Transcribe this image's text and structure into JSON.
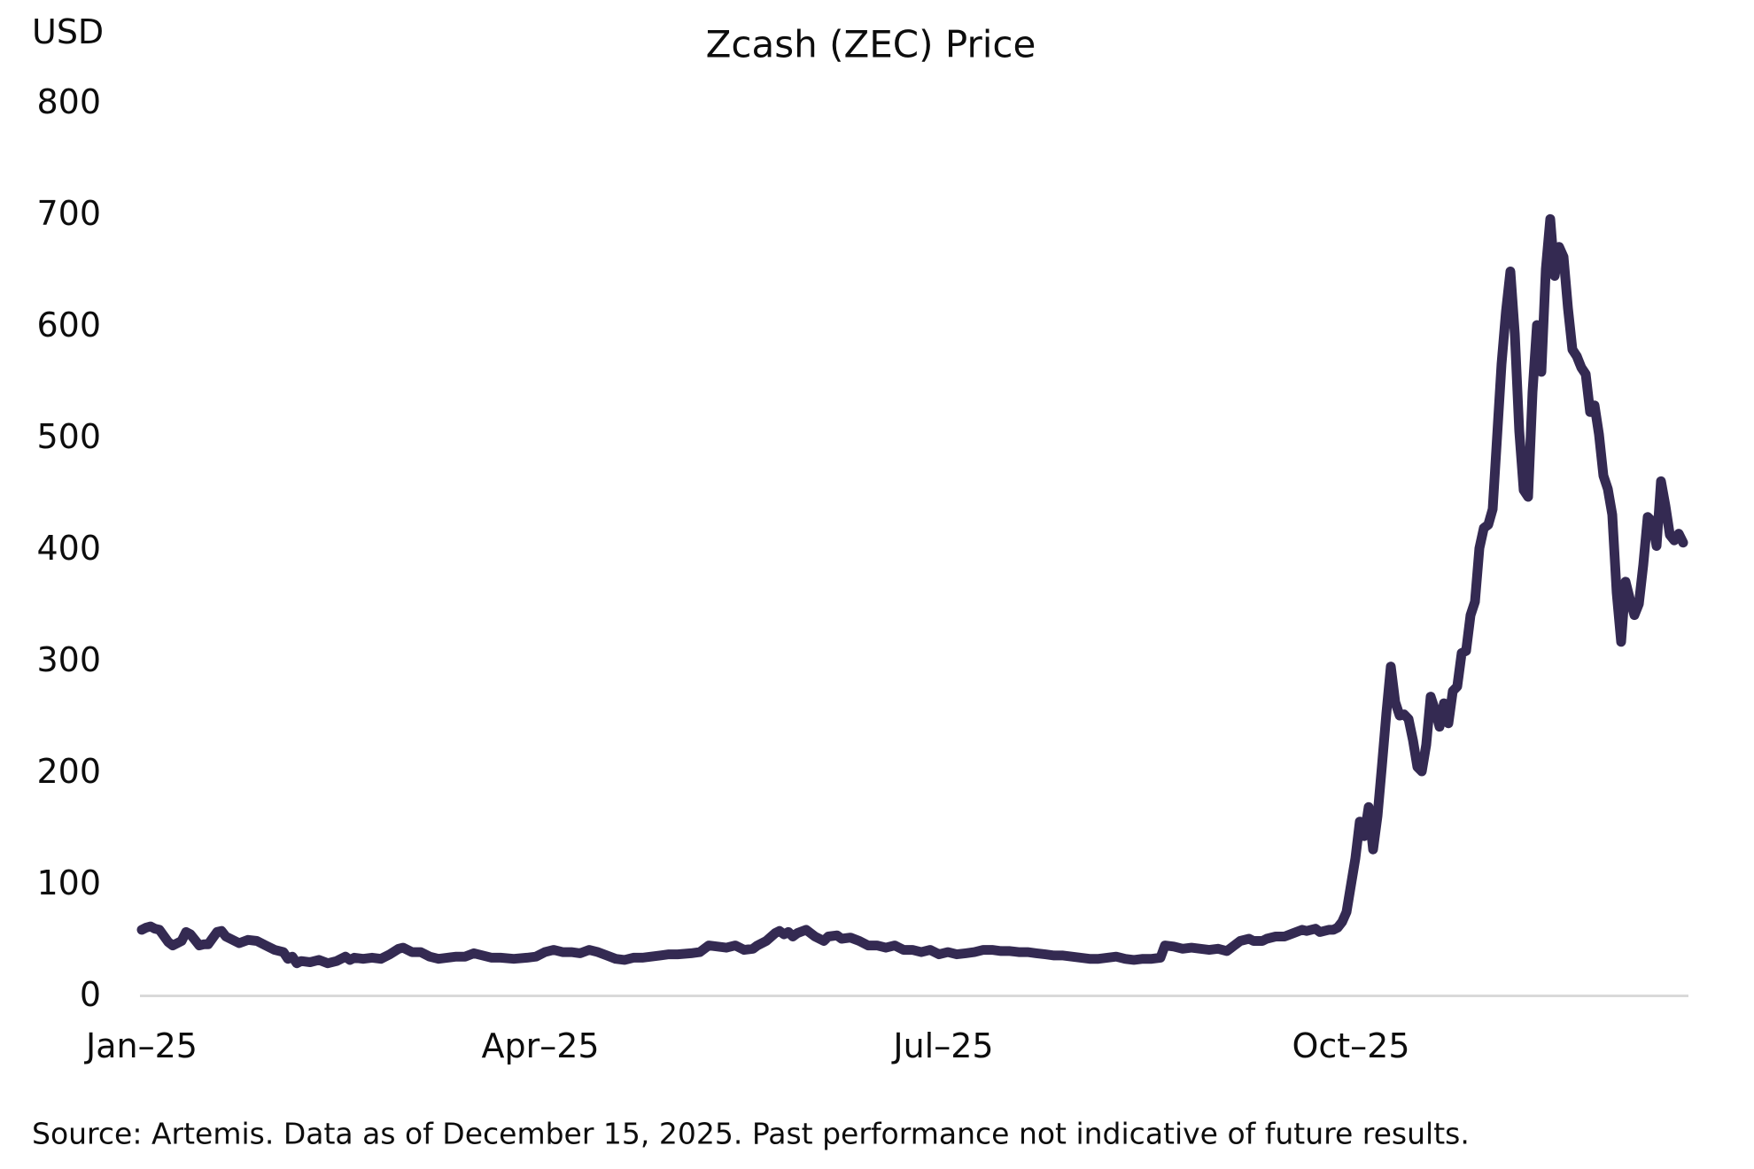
{
  "title": "Zcash (ZEC) Price",
  "y_axis_unit": "USD",
  "source_note": "Source: Artemis. Data as of December 15, 2025. Past performance not indicative of future results.",
  "colors": {
    "line": "#342a52",
    "axis": "#d9d9d9",
    "text": "#0d0d0d",
    "background": "#ffffff"
  },
  "chart_data": {
    "type": "line",
    "title": "Zcash (ZEC) Price",
    "ylabel": "USD",
    "xlabel": "",
    "series_name": "Zcash (ZEC) price in USD",
    "x_unit": "days since 2025-01-01",
    "xlim": [
      0,
      349
    ],
    "ylim": [
      0,
      800
    ],
    "grid": false,
    "legend": "none",
    "x_ticks": [
      {
        "label": "Jan–25",
        "day": 0
      },
      {
        "label": "Apr–25",
        "day": 90
      },
      {
        "label": "Jul–25",
        "day": 181
      },
      {
        "label": "Oct–25",
        "day": 273
      }
    ],
    "y_ticks": [
      0,
      100,
      200,
      300,
      400,
      500,
      600,
      700,
      800
    ],
    "points": [
      [
        0,
        58
      ],
      [
        1,
        60
      ],
      [
        2,
        61
      ],
      [
        3,
        59
      ],
      [
        4,
        58
      ],
      [
        6,
        47
      ],
      [
        7,
        44
      ],
      [
        9,
        48
      ],
      [
        10,
        56
      ],
      [
        11,
        54
      ],
      [
        13,
        44
      ],
      [
        14,
        45
      ],
      [
        15,
        45
      ],
      [
        17,
        56
      ],
      [
        18,
        57
      ],
      [
        19,
        52
      ],
      [
        20,
        50
      ],
      [
        22,
        46
      ],
      [
        24,
        49
      ],
      [
        26,
        48
      ],
      [
        28,
        44
      ],
      [
        30,
        40
      ],
      [
        32,
        38
      ],
      [
        33,
        32
      ],
      [
        34,
        34
      ],
      [
        35,
        28
      ],
      [
        36,
        30
      ],
      [
        38,
        29
      ],
      [
        40,
        31
      ],
      [
        42,
        28
      ],
      [
        44,
        30
      ],
      [
        46,
        34
      ],
      [
        47,
        31
      ],
      [
        48,
        33
      ],
      [
        50,
        32
      ],
      [
        52,
        33
      ],
      [
        54,
        32
      ],
      [
        56,
        36
      ],
      [
        58,
        41
      ],
      [
        59,
        42
      ],
      [
        61,
        38
      ],
      [
        63,
        38
      ],
      [
        65,
        34
      ],
      [
        67,
        32
      ],
      [
        69,
        33
      ],
      [
        71,
        34
      ],
      [
        73,
        34
      ],
      [
        75,
        37
      ],
      [
        77,
        35
      ],
      [
        79,
        33
      ],
      [
        81,
        33
      ],
      [
        84,
        32
      ],
      [
        87,
        33
      ],
      [
        89,
        34
      ],
      [
        91,
        38
      ],
      [
        93,
        40
      ],
      [
        95,
        38
      ],
      [
        97,
        38
      ],
      [
        99,
        37
      ],
      [
        101,
        40
      ],
      [
        103,
        38
      ],
      [
        105,
        35
      ],
      [
        107,
        32
      ],
      [
        109,
        31
      ],
      [
        111,
        33
      ],
      [
        113,
        33
      ],
      [
        115,
        34
      ],
      [
        117,
        35
      ],
      [
        119,
        36
      ],
      [
        121,
        36
      ],
      [
        124,
        37
      ],
      [
        126,
        38
      ],
      [
        128,
        44
      ],
      [
        130,
        43
      ],
      [
        132,
        42
      ],
      [
        134,
        44
      ],
      [
        136,
        40
      ],
      [
        138,
        41
      ],
      [
        139,
        44
      ],
      [
        141,
        48
      ],
      [
        143,
        55
      ],
      [
        144,
        57
      ],
      [
        145,
        54
      ],
      [
        146,
        56
      ],
      [
        147,
        52
      ],
      [
        148,
        55
      ],
      [
        150,
        58
      ],
      [
        152,
        52
      ],
      [
        154,
        48
      ],
      [
        155,
        52
      ],
      [
        157,
        53
      ],
      [
        158,
        50
      ],
      [
        160,
        51
      ],
      [
        162,
        48
      ],
      [
        164,
        44
      ],
      [
        166,
        44
      ],
      [
        168,
        42
      ],
      [
        170,
        44
      ],
      [
        172,
        40
      ],
      [
        174,
        40
      ],
      [
        176,
        38
      ],
      [
        178,
        40
      ],
      [
        180,
        36
      ],
      [
        182,
        38
      ],
      [
        184,
        36
      ],
      [
        186,
        37
      ],
      [
        188,
        38
      ],
      [
        190,
        40
      ],
      [
        192,
        40
      ],
      [
        194,
        39
      ],
      [
        196,
        39
      ],
      [
        198,
        38
      ],
      [
        200,
        38
      ],
      [
        202,
        37
      ],
      [
        204,
        36
      ],
      [
        206,
        35
      ],
      [
        208,
        35
      ],
      [
        210,
        34
      ],
      [
        212,
        33
      ],
      [
        214,
        32
      ],
      [
        216,
        32
      ],
      [
        218,
        33
      ],
      [
        220,
        34
      ],
      [
        222,
        32
      ],
      [
        224,
        31
      ],
      [
        226,
        32
      ],
      [
        228,
        32
      ],
      [
        230,
        33
      ],
      [
        231,
        44
      ],
      [
        233,
        43
      ],
      [
        235,
        41
      ],
      [
        237,
        42
      ],
      [
        239,
        41
      ],
      [
        241,
        40
      ],
      [
        243,
        41
      ],
      [
        245,
        39
      ],
      [
        246,
        42
      ],
      [
        248,
        48
      ],
      [
        250,
        50
      ],
      [
        251,
        48
      ],
      [
        253,
        48
      ],
      [
        254,
        50
      ],
      [
        256,
        52
      ],
      [
        258,
        52
      ],
      [
        260,
        55
      ],
      [
        262,
        58
      ],
      [
        263,
        57
      ],
      [
        265,
        59
      ],
      [
        266,
        56
      ],
      [
        268,
        58
      ],
      [
        269,
        58
      ],
      [
        270,
        60
      ],
      [
        271,
        65
      ],
      [
        272,
        74
      ],
      [
        273,
        98
      ],
      [
        274,
        122
      ],
      [
        275,
        155
      ],
      [
        276,
        142
      ],
      [
        277,
        168
      ],
      [
        278,
        130
      ],
      [
        279,
        160
      ],
      [
        280,
        205
      ],
      [
        281,
        252
      ],
      [
        282,
        294
      ],
      [
        283,
        262
      ],
      [
        284,
        250
      ],
      [
        285,
        251
      ],
      [
        286,
        247
      ],
      [
        287,
        228
      ],
      [
        288,
        204
      ],
      [
        289,
        200
      ],
      [
        290,
        224
      ],
      [
        291,
        267
      ],
      [
        292,
        255
      ],
      [
        293,
        240
      ],
      [
        294,
        261
      ],
      [
        295,
        243
      ],
      [
        296,
        272
      ],
      [
        297,
        276
      ],
      [
        298,
        306
      ],
      [
        299,
        308
      ],
      [
        300,
        340
      ],
      [
        301,
        352
      ],
      [
        302,
        400
      ],
      [
        303,
        418
      ],
      [
        304,
        421
      ],
      [
        305,
        435
      ],
      [
        306,
        500
      ],
      [
        307,
        565
      ],
      [
        308,
        612
      ],
      [
        309,
        648
      ],
      [
        310,
        592
      ],
      [
        311,
        505
      ],
      [
        312,
        452
      ],
      [
        313,
        446
      ],
      [
        314,
        540
      ],
      [
        315,
        600
      ],
      [
        316,
        558
      ],
      [
        317,
        650
      ],
      [
        318,
        695
      ],
      [
        319,
        644
      ],
      [
        320,
        670
      ],
      [
        321,
        661
      ],
      [
        322,
        615
      ],
      [
        323,
        578
      ],
      [
        324,
        572
      ],
      [
        325,
        562
      ],
      [
        326,
        556
      ],
      [
        327,
        522
      ],
      [
        328,
        528
      ],
      [
        329,
        502
      ],
      [
        330,
        465
      ],
      [
        331,
        453
      ],
      [
        332,
        430
      ],
      [
        333,
        360
      ],
      [
        334,
        316
      ],
      [
        335,
        370
      ],
      [
        336,
        354
      ],
      [
        337,
        340
      ],
      [
        338,
        350
      ],
      [
        339,
        385
      ],
      [
        340,
        428
      ],
      [
        341,
        424
      ],
      [
        342,
        402
      ],
      [
        343,
        460
      ],
      [
        344,
        438
      ],
      [
        345,
        412
      ],
      [
        346,
        407
      ],
      [
        347,
        413
      ],
      [
        348,
        405
      ]
    ]
  }
}
